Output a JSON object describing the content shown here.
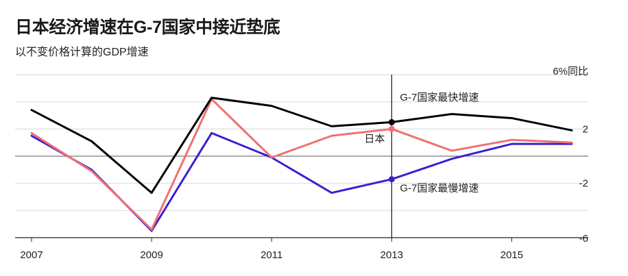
{
  "header": {
    "title": "日本经济增速在G-7国家中接近垫底",
    "subtitle": "以不变价格计算的GDP增速"
  },
  "chart_data": {
    "type": "line",
    "title": "日本经济增速在G-7国家中接近垫底",
    "subtitle": "以不变价格计算的GDP增速",
    "unit_label": "6%同比",
    "x": [
      2007,
      2008,
      2009,
      2010,
      2011,
      2012,
      2013,
      2014,
      2015,
      2016
    ],
    "xlim": [
      2007,
      2016
    ],
    "ylim": [
      -6,
      6
    ],
    "x_ticks": [
      2007,
      2009,
      2011,
      2013,
      2015
    ],
    "x_tick_labels": [
      "2007",
      "2009",
      "2011",
      "2013",
      "2015"
    ],
    "y_ticks": [
      6,
      2,
      -2,
      -6
    ],
    "y_tick_labels": [
      "6%同比",
      "2",
      "-2",
      "-6"
    ],
    "grid": true,
    "series": [
      {
        "name": "G-7国家最快增速",
        "color": "#000000",
        "values": [
          3.4,
          1.1,
          -2.7,
          4.3,
          3.7,
          2.2,
          2.5,
          3.1,
          2.8,
          1.9
        ]
      },
      {
        "name": "日本",
        "color": "#f07070",
        "values": [
          1.7,
          -1.1,
          -5.4,
          4.2,
          -0.1,
          1.5,
          2.0,
          0.4,
          1.2,
          1.0
        ]
      },
      {
        "name": "G-7国家最慢增速",
        "color": "#3b1fd1",
        "values": [
          1.5,
          -1.0,
          -5.5,
          1.7,
          -0.1,
          -2.7,
          -1.7,
          -0.2,
          0.9,
          0.9
        ]
      }
    ],
    "reference_year": 2013,
    "annotations": [
      {
        "text": "G-7国家最快增速",
        "series": 0
      },
      {
        "text": "日本",
        "series": 1
      },
      {
        "text": "G-7国家最慢增速",
        "series": 2
      }
    ]
  }
}
